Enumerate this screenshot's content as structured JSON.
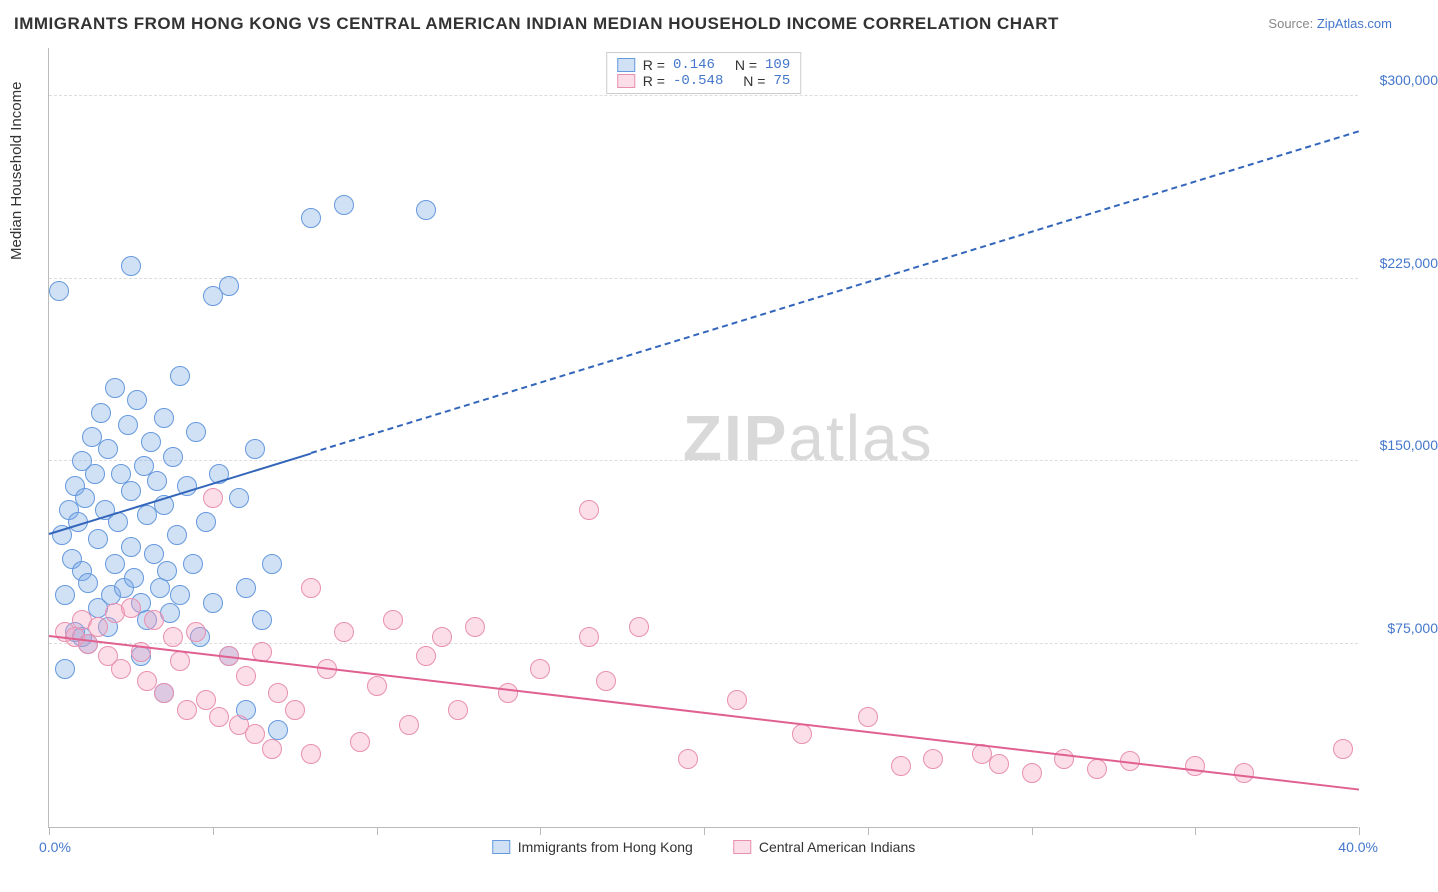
{
  "title": "IMMIGRANTS FROM HONG KONG VS CENTRAL AMERICAN INDIAN MEDIAN HOUSEHOLD INCOME CORRELATION CHART",
  "source_label": "Source:",
  "source_site": "ZipAtlas.com",
  "watermark": "ZIPatlas",
  "yaxis_title": "Median Household Income",
  "chart": {
    "type": "scatter",
    "xlim": [
      0,
      40
    ],
    "ylim": [
      0,
      320000
    ],
    "x_min_label": "0.0%",
    "x_max_label": "40.0%",
    "x_ticks": [
      0,
      5,
      10,
      15,
      20,
      25,
      30,
      35,
      40
    ],
    "y_gridlines": [
      75000,
      150000,
      225000,
      300000
    ],
    "y_grid_labels": [
      "$75,000",
      "$150,000",
      "$225,000",
      "$300,000"
    ],
    "grid_color": "#dddddd",
    "axis_color": "#bbbbbb",
    "label_color": "#4477cc",
    "background_color": "#ffffff",
    "marker_radius": 10,
    "marker_stroke_width": 1.5,
    "series": [
      {
        "name": "Immigrants from Hong Kong",
        "fill": "rgba(120,170,230,0.35)",
        "stroke": "#6699dd",
        "trend_color": "#3366bb",
        "R": "0.146",
        "N": "109",
        "trend": {
          "x1": 0,
          "y1": 120000,
          "x2": 40,
          "y2": 285000,
          "solid_until_x": 8
        },
        "points": [
          [
            0.4,
            120000
          ],
          [
            0.5,
            95000
          ],
          [
            0.6,
            130000
          ],
          [
            0.7,
            110000
          ],
          [
            0.8,
            140000
          ],
          [
            0.9,
            125000
          ],
          [
            1.0,
            105000
          ],
          [
            1.0,
            150000
          ],
          [
            1.1,
            135000
          ],
          [
            1.2,
            100000
          ],
          [
            1.3,
            160000
          ],
          [
            1.4,
            145000
          ],
          [
            1.5,
            118000
          ],
          [
            1.5,
            90000
          ],
          [
            1.6,
            170000
          ],
          [
            1.7,
            130000
          ],
          [
            1.8,
            155000
          ],
          [
            1.9,
            95000
          ],
          [
            2.0,
            180000
          ],
          [
            2.0,
            108000
          ],
          [
            2.1,
            125000
          ],
          [
            2.2,
            145000
          ],
          [
            2.3,
            98000
          ],
          [
            2.4,
            165000
          ],
          [
            2.5,
            138000
          ],
          [
            2.5,
            115000
          ],
          [
            2.6,
            102000
          ],
          [
            2.7,
            175000
          ],
          [
            2.8,
            92000
          ],
          [
            2.9,
            148000
          ],
          [
            3.0,
            128000
          ],
          [
            3.0,
            85000
          ],
          [
            3.1,
            158000
          ],
          [
            3.2,
            112000
          ],
          [
            3.3,
            142000
          ],
          [
            3.4,
            98000
          ],
          [
            3.5,
            168000
          ],
          [
            3.5,
            132000
          ],
          [
            3.6,
            105000
          ],
          [
            3.7,
            88000
          ],
          [
            3.8,
            152000
          ],
          [
            3.9,
            120000
          ],
          [
            4.0,
            185000
          ],
          [
            4.0,
            95000
          ],
          [
            4.2,
            140000
          ],
          [
            4.4,
            108000
          ],
          [
            4.5,
            162000
          ],
          [
            4.6,
            78000
          ],
          [
            4.8,
            125000
          ],
          [
            5.0,
            218000
          ],
          [
            5.0,
            92000
          ],
          [
            5.2,
            145000
          ],
          [
            5.5,
            222000
          ],
          [
            5.5,
            70000
          ],
          [
            5.8,
            135000
          ],
          [
            6.0,
            98000
          ],
          [
            6.0,
            48000
          ],
          [
            6.3,
            155000
          ],
          [
            6.5,
            85000
          ],
          [
            6.8,
            108000
          ],
          [
            7.0,
            40000
          ],
          [
            8.0,
            250000
          ],
          [
            9.0,
            255000
          ],
          [
            11.5,
            253000
          ],
          [
            0.3,
            220000
          ],
          [
            2.5,
            230000
          ],
          [
            0.8,
            80000
          ],
          [
            1.2,
            75000
          ],
          [
            1.8,
            82000
          ],
          [
            2.8,
            70000
          ],
          [
            0.5,
            65000
          ],
          [
            1.0,
            78000
          ],
          [
            3.5,
            55000
          ]
        ]
      },
      {
        "name": "Central American Indians",
        "fill": "rgba(245,160,190,0.35)",
        "stroke": "#e890b0",
        "trend_color": "#e06090",
        "R": "-0.548",
        "N": "75",
        "trend": {
          "x1": 0,
          "y1": 78000,
          "x2": 40,
          "y2": 15000,
          "solid_until_x": 40
        },
        "points": [
          [
            0.5,
            80000
          ],
          [
            0.8,
            78000
          ],
          [
            1.0,
            85000
          ],
          [
            1.2,
            75000
          ],
          [
            1.5,
            82000
          ],
          [
            1.8,
            70000
          ],
          [
            2.0,
            88000
          ],
          [
            2.2,
            65000
          ],
          [
            2.5,
            90000
          ],
          [
            2.8,
            72000
          ],
          [
            3.0,
            60000
          ],
          [
            3.2,
            85000
          ],
          [
            3.5,
            55000
          ],
          [
            3.8,
            78000
          ],
          [
            4.0,
            68000
          ],
          [
            4.2,
            48000
          ],
          [
            4.5,
            80000
          ],
          [
            4.8,
            52000
          ],
          [
            5.0,
            135000
          ],
          [
            5.2,
            45000
          ],
          [
            5.5,
            70000
          ],
          [
            5.8,
            42000
          ],
          [
            6.0,
            62000
          ],
          [
            6.3,
            38000
          ],
          [
            6.5,
            72000
          ],
          [
            6.8,
            32000
          ],
          [
            7.0,
            55000
          ],
          [
            7.5,
            48000
          ],
          [
            8.0,
            98000
          ],
          [
            8.0,
            30000
          ],
          [
            8.5,
            65000
          ],
          [
            9.0,
            80000
          ],
          [
            9.5,
            35000
          ],
          [
            10.0,
            58000
          ],
          [
            10.5,
            85000
          ],
          [
            11.0,
            42000
          ],
          [
            11.5,
            70000
          ],
          [
            12.0,
            78000
          ],
          [
            12.5,
            48000
          ],
          [
            13.0,
            82000
          ],
          [
            14.0,
            55000
          ],
          [
            15.0,
            65000
          ],
          [
            16.5,
            130000
          ],
          [
            16.5,
            78000
          ],
          [
            17.0,
            60000
          ],
          [
            18.0,
            82000
          ],
          [
            19.5,
            28000
          ],
          [
            21.0,
            52000
          ],
          [
            23.0,
            38000
          ],
          [
            25.0,
            45000
          ],
          [
            26.0,
            25000
          ],
          [
            27.0,
            28000
          ],
          [
            28.5,
            30000
          ],
          [
            29.0,
            26000
          ],
          [
            30.0,
            22000
          ],
          [
            31.0,
            28000
          ],
          [
            32.0,
            24000
          ],
          [
            33.0,
            27000
          ],
          [
            35.0,
            25000
          ],
          [
            36.5,
            22000
          ],
          [
            39.5,
            32000
          ]
        ]
      }
    ]
  },
  "stats_labels": {
    "R": "R =",
    "N": "N ="
  },
  "legend": {
    "s1": "Immigrants from Hong Kong",
    "s2": "Central American Indians"
  }
}
